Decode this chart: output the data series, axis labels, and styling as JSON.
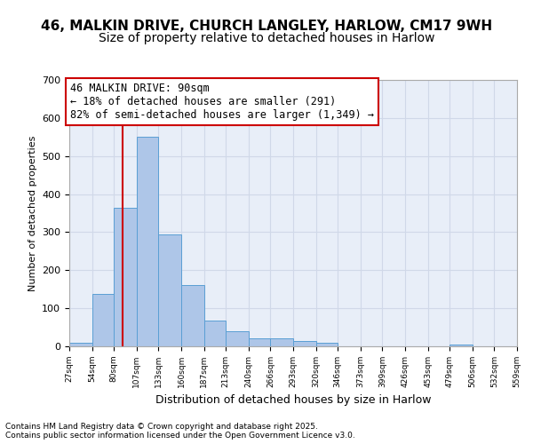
{
  "title1": "46, MALKIN DRIVE, CHURCH LANGLEY, HARLOW, CM17 9WH",
  "title2": "Size of property relative to detached houses in Harlow",
  "xlabel": "Distribution of detached houses by size in Harlow",
  "ylabel": "Number of detached properties",
  "bar_edges": [
    27,
    54,
    80,
    107,
    133,
    160,
    187,
    213,
    240,
    266,
    293,
    320,
    346,
    373,
    399,
    426,
    453,
    479,
    506,
    532,
    559
  ],
  "bar_heights": [
    10,
    138,
    365,
    550,
    293,
    160,
    67,
    40,
    20,
    20,
    15,
    10,
    0,
    0,
    0,
    0,
    0,
    5,
    0,
    0
  ],
  "bar_color": "#aec6e8",
  "bar_edgecolor": "#5a9fd4",
  "vline_x": 90,
  "vline_color": "#cc0000",
  "annotation_text": "46 MALKIN DRIVE: 90sqm\n← 18% of detached houses are smaller (291)\n82% of semi-detached houses are larger (1,349) →",
  "annotation_box_color": "#cc0000",
  "annotation_fontsize": 8.5,
  "ylim": [
    0,
    700
  ],
  "yticks": [
    0,
    100,
    200,
    300,
    400,
    500,
    600,
    700
  ],
  "xtick_labels": [
    "27sqm",
    "54sqm",
    "80sqm",
    "107sqm",
    "133sqm",
    "160sqm",
    "187sqm",
    "213sqm",
    "240sqm",
    "266sqm",
    "293sqm",
    "320sqm",
    "346sqm",
    "373sqm",
    "399sqm",
    "426sqm",
    "453sqm",
    "479sqm",
    "506sqm",
    "532sqm",
    "559sqm"
  ],
  "grid_color": "#d0d8e8",
  "background_color": "#e8eef8",
  "footer_text": "Contains HM Land Registry data © Crown copyright and database right 2025.\nContains public sector information licensed under the Open Government Licence v3.0.",
  "title_fontsize": 11,
  "subtitle_fontsize": 10
}
